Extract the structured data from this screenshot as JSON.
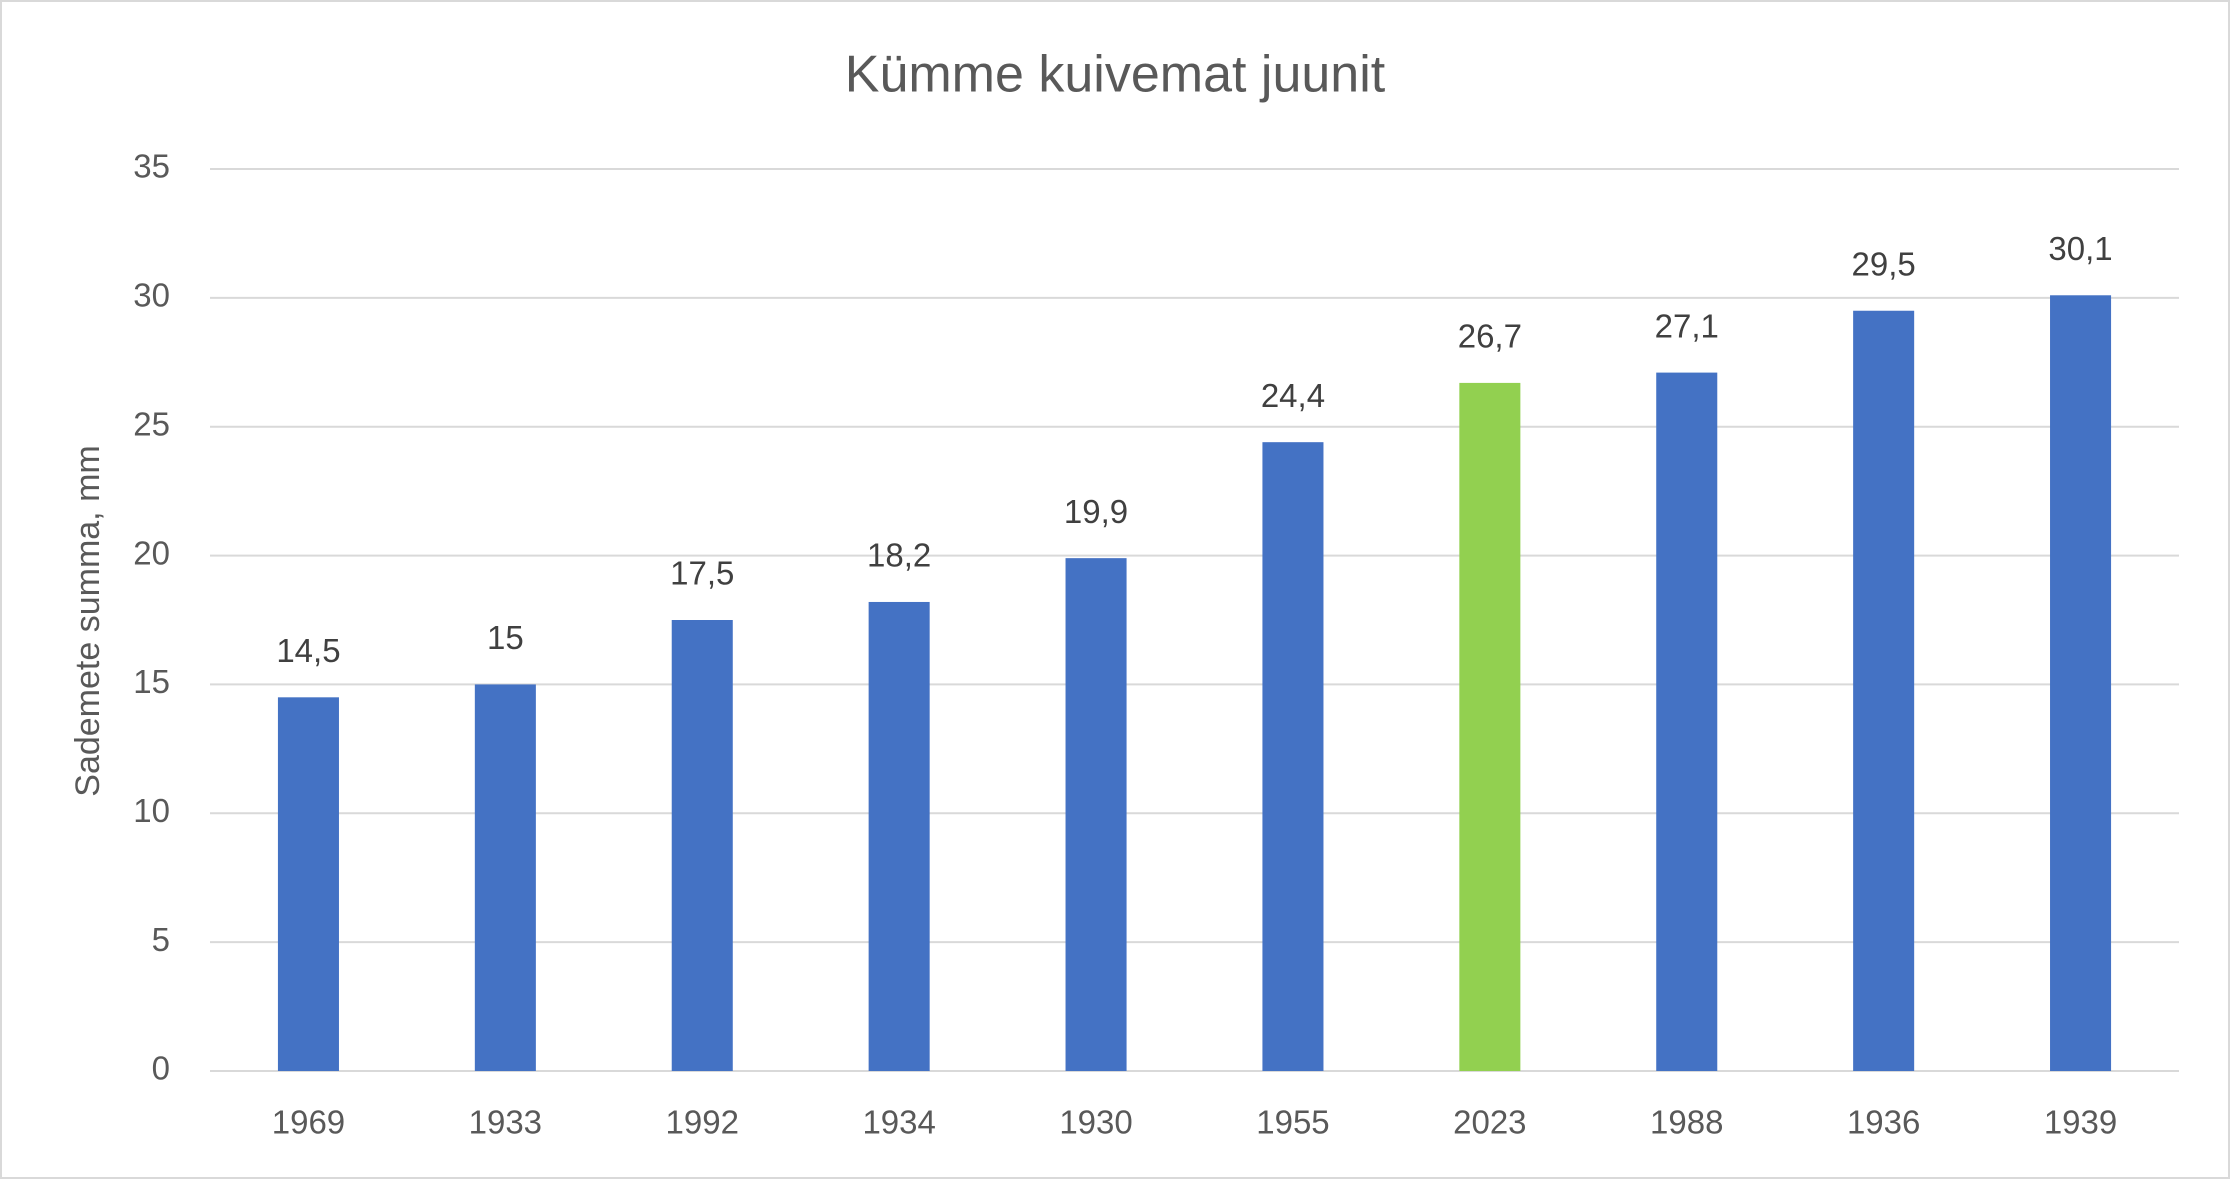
{
  "chart_data": {
    "type": "bar",
    "title": "Kümme kuivemat juunit",
    "y_label": "Sademete summa, mm",
    "categories": [
      "1969",
      "1933",
      "1992",
      "1934",
      "1930",
      "1955",
      "2023",
      "1988",
      "1936",
      "1939"
    ],
    "values": [
      14.5,
      15,
      17.5,
      18.2,
      19.9,
      24.4,
      26.7,
      27.1,
      29.5,
      30.1
    ],
    "value_labels": [
      "14,5",
      "15",
      "17,5",
      "18,2",
      "19,9",
      "24,4",
      "26,7",
      "27,1",
      "29,5",
      "30,1"
    ],
    "colors": [
      "#4472c4",
      "#4472c4",
      "#4472c4",
      "#4472c4",
      "#4472c4",
      "#4472c4",
      "#92d050",
      "#4472c4",
      "#4472c4",
      "#4472c4"
    ],
    "ylim": [
      0,
      35
    ],
    "yticks": [
      0,
      5,
      10,
      15,
      20,
      25,
      30,
      35
    ],
    "grid": true
  }
}
